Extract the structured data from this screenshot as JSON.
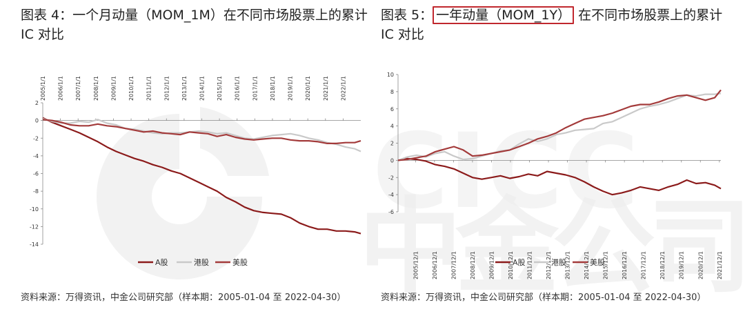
{
  "figures": [
    {
      "title_prefix": "图表 4：",
      "title_highlight": "",
      "title_rest": "一个月动量（MOM_1M）在不同市场股票上的累计 IC 对比",
      "source": "资料来源：万得资讯，中金公司研究部（样本期：2005-01-04 至 2022-04-30）"
    },
    {
      "title_prefix": "图表 5：",
      "title_highlight": "一年动量（MOM_1Y）",
      "title_rest": "在不同市场股票上的累计 IC 对比",
      "source": "资料来源：万得资讯，中金公司研究部（样本期：2005-01-04 至 2022-04-30）"
    }
  ],
  "watermark_text": "中金公司",
  "colors": {
    "a_share": "#8b1a1a",
    "hk": "#c9c9c9",
    "us": "#a33a3a",
    "highlight_border": "#c0272d"
  },
  "chart_data": [
    {
      "type": "line",
      "x_ticks": [
        "2005/1/1",
        "2006/1/1",
        "2007/1/1",
        "2008/1/1",
        "2009/1/1",
        "2010/1/1",
        "2011/1/1",
        "2012/1/1",
        "2013/1/1",
        "2014/1/1",
        "2015/1/1",
        "2016/1/1",
        "2017/1/1",
        "2018/1/1",
        "2019/1/1",
        "2020/1/1",
        "2021/1/1",
        "2022/1/1"
      ],
      "x_axis_position": "top",
      "x_range": [
        2005.0,
        2022.33
      ],
      "ylim": [
        -14,
        2
      ],
      "y_ticks": [
        2,
        0,
        -2,
        -4,
        -6,
        -8,
        -10,
        -12,
        -14
      ],
      "legend": {
        "position": "bottom",
        "entries": [
          "A股",
          "港股",
          "美股"
        ]
      },
      "series": [
        {
          "name": "A股",
          "x": [
            2005.0,
            2005.5,
            2006.0,
            2006.5,
            2007.0,
            2007.5,
            2008.0,
            2008.5,
            2009.0,
            2009.5,
            2010.0,
            2010.5,
            2011.0,
            2011.5,
            2012.0,
            2012.5,
            2013.0,
            2013.5,
            2014.0,
            2014.5,
            2015.0,
            2015.5,
            2016.0,
            2016.5,
            2017.0,
            2017.5,
            2018.0,
            2018.5,
            2019.0,
            2019.5,
            2020.0,
            2020.5,
            2021.0,
            2021.5,
            2022.0,
            2022.33
          ],
          "y": [
            0.3,
            -0.2,
            -0.6,
            -1.0,
            -1.4,
            -1.9,
            -2.4,
            -3.0,
            -3.5,
            -3.9,
            -4.3,
            -4.6,
            -5.0,
            -5.3,
            -5.7,
            -6.0,
            -6.5,
            -7.0,
            -7.5,
            -8.0,
            -8.7,
            -9.2,
            -9.8,
            -10.2,
            -10.4,
            -10.5,
            -10.6,
            -11.0,
            -11.6,
            -12.0,
            -12.3,
            -12.3,
            -12.5,
            -12.5,
            -12.6,
            -12.8
          ]
        },
        {
          "name": "港股",
          "x": [
            2005.0,
            2005.5,
            2006.0,
            2006.5,
            2007.0,
            2007.5,
            2008.0,
            2008.5,
            2009.0,
            2009.5,
            2010.0,
            2010.5,
            2011.0,
            2011.5,
            2012.0,
            2012.5,
            2013.0,
            2013.5,
            2014.0,
            2014.5,
            2015.0,
            2015.5,
            2016.0,
            2016.5,
            2017.0,
            2017.5,
            2018.0,
            2018.5,
            2019.0,
            2019.5,
            2020.0,
            2020.5,
            2021.0,
            2021.5,
            2022.0,
            2022.33
          ],
          "y": [
            0.2,
            -0.1,
            -0.3,
            -0.3,
            -0.1,
            -0.2,
            0.1,
            -0.3,
            -0.5,
            -0.9,
            -1.0,
            -1.2,
            -1.4,
            -1.5,
            -1.4,
            -1.4,
            -1.3,
            -1.2,
            -1.3,
            -1.5,
            -1.4,
            -1.7,
            -2.0,
            -2.1,
            -1.9,
            -1.7,
            -1.6,
            -1.5,
            -1.7,
            -2.0,
            -2.2,
            -2.5,
            -2.7,
            -3.0,
            -3.2,
            -3.5
          ]
        },
        {
          "name": "美股",
          "x": [
            2005.0,
            2005.5,
            2006.0,
            2006.5,
            2007.0,
            2007.5,
            2008.0,
            2008.5,
            2009.0,
            2009.5,
            2010.0,
            2010.5,
            2011.0,
            2011.5,
            2012.0,
            2012.5,
            2013.0,
            2013.5,
            2014.0,
            2014.5,
            2015.0,
            2015.5,
            2016.0,
            2016.5,
            2017.0,
            2017.5,
            2018.0,
            2018.5,
            2019.0,
            2019.5,
            2020.0,
            2020.5,
            2021.0,
            2021.5,
            2022.0,
            2022.33
          ],
          "y": [
            0.1,
            0.0,
            -0.2,
            -0.5,
            -0.6,
            -0.6,
            -0.4,
            -0.6,
            -0.7,
            -0.9,
            -1.1,
            -1.3,
            -1.2,
            -1.4,
            -1.5,
            -1.6,
            -1.3,
            -1.4,
            -1.5,
            -1.8,
            -1.6,
            -1.9,
            -2.1,
            -2.2,
            -2.1,
            -2.0,
            -2.0,
            -2.2,
            -2.3,
            -2.3,
            -2.4,
            -2.6,
            -2.6,
            -2.5,
            -2.5,
            -2.3
          ]
        }
      ]
    },
    {
      "type": "line",
      "x_ticks": [
        "2005/12/1",
        "2006/12/1",
        "2007/12/1",
        "2008/12/1",
        "2009/12/1",
        "2010/12/1",
        "2011/12/1",
        "2012/12/1",
        "2013/12/1",
        "2014/12/1",
        "2015/12/1",
        "2016/12/1",
        "2017/12/1",
        "2018/12/1",
        "2019/12/1",
        "2020/12/1",
        "2021/12/1"
      ],
      "x_axis_position": "bottom",
      "x_range": [
        2005.0,
        2022.33
      ],
      "ylim": [
        -6,
        10
      ],
      "y_ticks": [
        10,
        8,
        6,
        4,
        2,
        0,
        -2,
        -4,
        -6
      ],
      "legend": {
        "position": "bottom",
        "entries": [
          "A股",
          "港股",
          "美股"
        ]
      },
      "series": [
        {
          "name": "A股",
          "x": [
            2005.0,
            2005.5,
            2006.0,
            2006.5,
            2007.0,
            2007.5,
            2008.0,
            2008.5,
            2009.0,
            2009.5,
            2010.0,
            2010.5,
            2011.0,
            2011.5,
            2012.0,
            2012.5,
            2013.0,
            2013.5,
            2014.0,
            2014.5,
            2015.0,
            2015.5,
            2016.0,
            2016.5,
            2017.0,
            2017.5,
            2018.0,
            2018.5,
            2019.0,
            2019.5,
            2020.0,
            2020.5,
            2021.0,
            2021.5,
            2022.0,
            2022.33
          ],
          "y": [
            0.0,
            0.2,
            0.1,
            -0.1,
            -0.5,
            -0.7,
            -1.0,
            -1.5,
            -2.0,
            -2.2,
            -2.0,
            -1.8,
            -2.1,
            -1.9,
            -1.6,
            -1.8,
            -1.3,
            -1.5,
            -1.7,
            -2.0,
            -2.5,
            -3.1,
            -3.6,
            -4.0,
            -3.8,
            -3.5,
            -3.1,
            -3.3,
            -3.5,
            -3.1,
            -2.8,
            -2.3,
            -2.7,
            -2.6,
            -2.9,
            -3.3
          ]
        },
        {
          "name": "港股",
          "x": [
            2005.0,
            2005.5,
            2006.0,
            2006.5,
            2007.0,
            2007.5,
            2008.0,
            2008.5,
            2009.0,
            2009.5,
            2010.0,
            2010.5,
            2011.0,
            2011.5,
            2012.0,
            2012.5,
            2013.0,
            2013.5,
            2014.0,
            2014.5,
            2015.0,
            2015.5,
            2016.0,
            2016.5,
            2017.0,
            2017.5,
            2018.0,
            2018.5,
            2019.0,
            2019.5,
            2020.0,
            2020.5,
            2021.0,
            2021.5,
            2022.0,
            2022.33
          ],
          "y": [
            0.0,
            0.4,
            0.6,
            0.4,
            0.8,
            1.0,
            0.5,
            0.1,
            0.2,
            0.5,
            0.8,
            1.1,
            1.2,
            1.9,
            2.5,
            2.2,
            2.5,
            3.0,
            3.2,
            3.5,
            3.6,
            3.7,
            4.3,
            4.5,
            5.0,
            5.5,
            6.0,
            6.3,
            6.5,
            6.8,
            7.2,
            7.6,
            7.5,
            7.7,
            7.7,
            7.8
          ]
        },
        {
          "name": "美股",
          "x": [
            2005.0,
            2005.5,
            2006.0,
            2006.5,
            2007.0,
            2007.5,
            2008.0,
            2008.5,
            2009.0,
            2009.5,
            2010.0,
            2010.5,
            2011.0,
            2011.5,
            2012.0,
            2012.5,
            2013.0,
            2013.5,
            2014.0,
            2014.5,
            2015.0,
            2015.5,
            2016.0,
            2016.5,
            2017.0,
            2017.5,
            2018.0,
            2018.5,
            2019.0,
            2019.5,
            2020.0,
            2020.5,
            2021.0,
            2021.5,
            2022.0,
            2022.33
          ],
          "y": [
            0.0,
            0.1,
            0.3,
            0.5,
            1.0,
            1.3,
            1.6,
            1.2,
            0.5,
            0.6,
            0.8,
            1.0,
            1.2,
            1.6,
            2.0,
            2.5,
            2.8,
            3.2,
            3.8,
            4.3,
            4.8,
            5.0,
            5.2,
            5.5,
            5.9,
            6.3,
            6.5,
            6.5,
            6.8,
            7.2,
            7.5,
            7.6,
            7.3,
            7.0,
            7.3,
            8.2
          ]
        }
      ]
    }
  ]
}
